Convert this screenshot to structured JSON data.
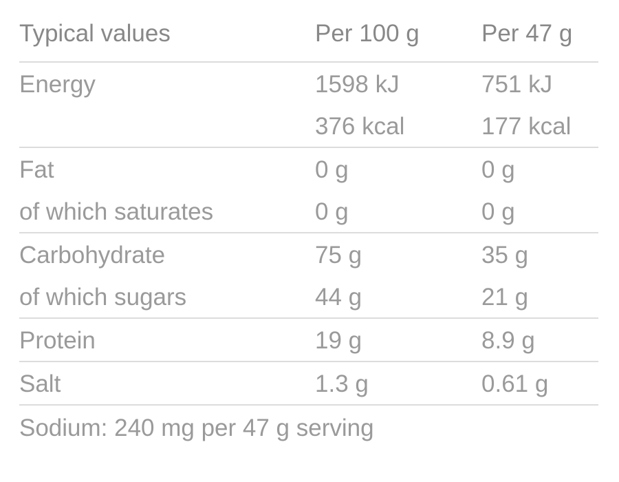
{
  "header": {
    "label": "Typical values",
    "col1": "Per 100 g",
    "col2": "Per 47 g"
  },
  "groups": [
    {
      "rows": [
        {
          "label": "Energy",
          "per100": "1598 kJ",
          "perServing": "751 kJ"
        },
        {
          "label": "",
          "per100": "376 kcal",
          "perServing": "177 kcal"
        }
      ]
    },
    {
      "rows": [
        {
          "label": "Fat",
          "per100": "0 g",
          "perServing": "0 g"
        },
        {
          "label": "of which saturates",
          "per100": "0 g",
          "perServing": "0 g"
        }
      ]
    },
    {
      "rows": [
        {
          "label": "Carbohydrate",
          "per100": "75 g",
          "perServing": "35 g"
        },
        {
          "label": "of which sugars",
          "per100": "44 g",
          "perServing": "21 g"
        }
      ]
    },
    {
      "rows": [
        {
          "label": "Protein",
          "per100": "19 g",
          "perServing": "8.9 g"
        }
      ]
    },
    {
      "rows": [
        {
          "label": "Salt",
          "per100": "1.3 g",
          "perServing": "0.61 g"
        }
      ]
    }
  ],
  "footnote": "Sodium: 240 mg per 47 g serving",
  "colors": {
    "text": "#9a9a9a",
    "header_text": "#888888",
    "rule": "#dcdcdc"
  }
}
